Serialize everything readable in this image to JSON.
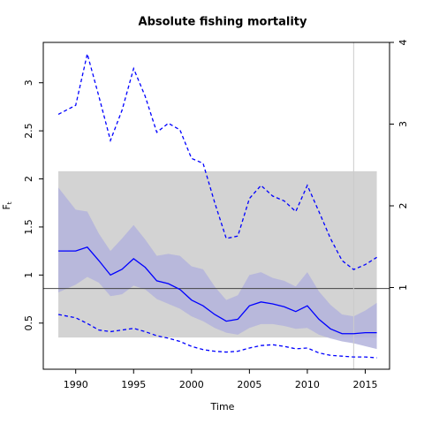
{
  "chart_data": {
    "type": "line",
    "title": "Absolute fishing mortality",
    "xlabel": "Time",
    "ylabel": "F",
    "ylabel_sub": "t",
    "x": [
      1988.5,
      1990,
      1991,
      1992,
      1993,
      1994,
      1995,
      1996,
      1997,
      1998,
      1999,
      2000,
      2001,
      2002,
      2003,
      2004,
      2005,
      2006,
      2007,
      2008,
      2009,
      2010,
      2011,
      2012,
      2013,
      2014,
      2015,
      2016
    ],
    "xlim": [
      1987.2,
      2017.1
    ],
    "xticks": [
      1990,
      1995,
      2000,
      2005,
      2010,
      2015
    ],
    "ylim": [
      0.02,
      3.42
    ],
    "yticks": [
      0.5,
      1.0,
      1.5,
      2.0,
      2.5,
      3.0
    ],
    "y2lim": [
      0,
      4
    ],
    "y2ticks": [
      1,
      2,
      3,
      4
    ],
    "ref_band": {
      "x": [
        1988.5,
        2016
      ],
      "y": [
        0.35,
        2.08
      ],
      "color": "#d3d3d3"
    },
    "hline": 0.86,
    "vline": 2014,
    "band": {
      "color": "#b3b3dc",
      "upper": [
        1.91,
        1.68,
        1.66,
        1.43,
        1.25,
        1.38,
        1.52,
        1.37,
        1.2,
        1.22,
        1.2,
        1.09,
        1.06,
        0.88,
        0.74,
        0.79,
        1.0,
        1.03,
        0.97,
        0.94,
        0.88,
        1.03,
        0.83,
        0.69,
        0.59,
        0.57,
        0.63,
        0.71
      ],
      "lower": [
        0.82,
        0.9,
        0.98,
        0.92,
        0.78,
        0.8,
        0.89,
        0.85,
        0.75,
        0.7,
        0.65,
        0.57,
        0.52,
        0.45,
        0.4,
        0.38,
        0.45,
        0.49,
        0.49,
        0.47,
        0.44,
        0.45,
        0.38,
        0.34,
        0.31,
        0.29,
        0.26,
        0.23
      ]
    },
    "series": [
      {
        "color": "#0000ff",
        "values": [
          1.25,
          1.25,
          1.29,
          1.15,
          1.0,
          1.06,
          1.17,
          1.08,
          0.94,
          0.91,
          0.85,
          0.74,
          0.68,
          0.59,
          0.52,
          0.54,
          0.68,
          0.72,
          0.7,
          0.67,
          0.62,
          0.68,
          0.54,
          0.44,
          0.39,
          0.39,
          0.4,
          0.4
        ]
      },
      {
        "color": "#0000ff",
        "dash": true,
        "axis": "y2",
        "values": [
          3.12,
          3.23,
          3.86,
          3.34,
          2.8,
          3.17,
          3.68,
          3.34,
          2.9,
          3.01,
          2.93,
          2.58,
          2.52,
          2.04,
          1.6,
          1.63,
          2.09,
          2.25,
          2.12,
          2.06,
          1.93,
          2.25,
          1.93,
          1.6,
          1.33,
          1.22,
          1.28,
          1.37
        ]
      },
      {
        "color": "#0000ff",
        "dash": true,
        "axis": "y2",
        "values": [
          0.67,
          0.63,
          0.56,
          0.48,
          0.46,
          0.48,
          0.5,
          0.46,
          0.41,
          0.38,
          0.34,
          0.28,
          0.24,
          0.22,
          0.21,
          0.22,
          0.26,
          0.29,
          0.3,
          0.28,
          0.25,
          0.26,
          0.2,
          0.17,
          0.16,
          0.15,
          0.15,
          0.14
        ]
      }
    ]
  }
}
